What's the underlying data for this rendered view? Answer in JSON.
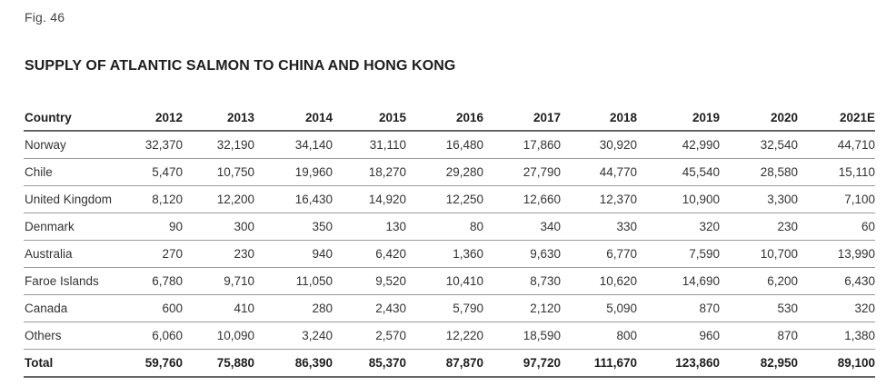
{
  "figure": {
    "label": "Fig. 46",
    "title": "SUPPLY OF ATLANTIC SALMON TO CHINA AND HONG KONG"
  },
  "table": {
    "headers": [
      "Country",
      "2012",
      "2013",
      "2014",
      "2015",
      "2016",
      "2017",
      "2018",
      "2019",
      "2020",
      "2021E"
    ],
    "rows": [
      [
        "Norway",
        "32,370",
        "32,190",
        "34,140",
        "31,110",
        "16,480",
        "17,860",
        "30,920",
        "42,990",
        "32,540",
        "44,710"
      ],
      [
        "Chile",
        "5,470",
        "10,750",
        "19,960",
        "18,270",
        "29,280",
        "27,790",
        "44,770",
        "45,540",
        "28,580",
        "15,110"
      ],
      [
        "United Kingdom",
        "8,120",
        "12,200",
        "16,430",
        "14,920",
        "12,250",
        "12,660",
        "12,370",
        "10,900",
        "3,300",
        "7,100"
      ],
      [
        "Denmark",
        "90",
        "300",
        "350",
        "130",
        "80",
        "340",
        "330",
        "320",
        "230",
        "60"
      ],
      [
        "Australia",
        "270",
        "230",
        "940",
        "6,420",
        "1,360",
        "9,630",
        "6,770",
        "7,590",
        "10,700",
        "13,990"
      ],
      [
        "Faroe Islands",
        "6,780",
        "9,710",
        "11,050",
        "9,520",
        "10,410",
        "8,730",
        "10,620",
        "14,690",
        "6,200",
        "6,430"
      ],
      [
        "Canada",
        "600",
        "410",
        "280",
        "2,430",
        "5,790",
        "2,120",
        "5,090",
        "870",
        "530",
        "320"
      ],
      [
        "Others",
        "6,060",
        "10,090",
        "3,240",
        "2,570",
        "12,220",
        "18,590",
        "800",
        "960",
        "870",
        "1,380"
      ]
    ],
    "total": [
      "Total",
      "59,760",
      "75,880",
      "86,390",
      "85,370",
      "87,870",
      "97,720",
      "111,670",
      "123,860",
      "82,950",
      "89,100"
    ]
  }
}
